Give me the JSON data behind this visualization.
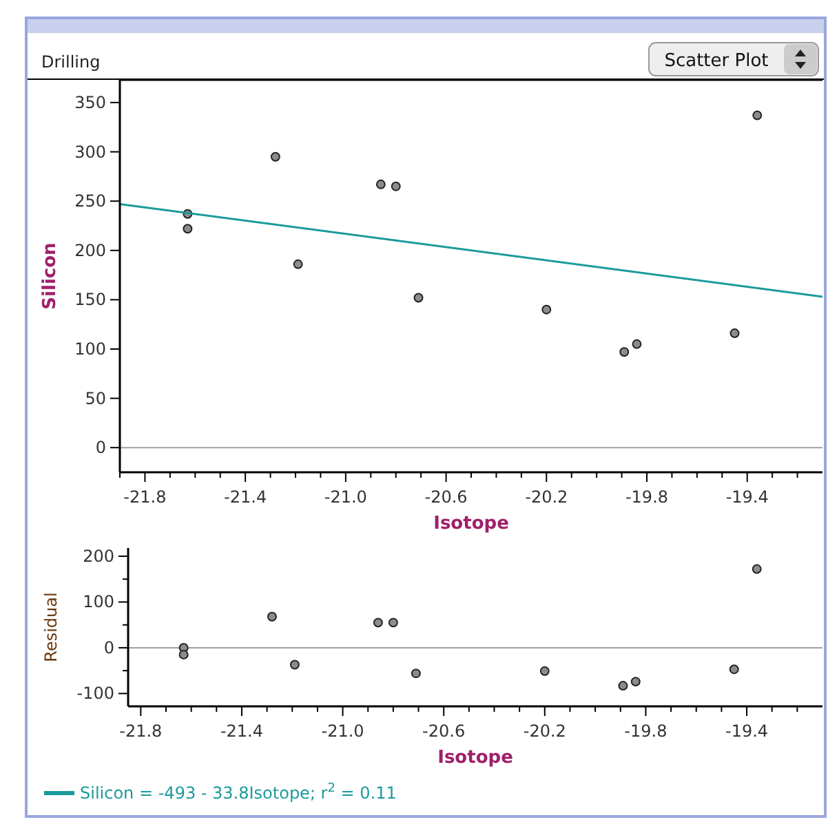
{
  "chart_data": [
    {
      "type": "scatter",
      "title": "Drilling",
      "annotations": [
        "Scatter Plot"
      ],
      "xlabel": "Isotope",
      "ylabel": "Silicon",
      "xlim": [
        -21.9,
        -19.1
      ],
      "ylim": [
        -25,
        373
      ],
      "xticks": [
        {
          "value": -21.9,
          "label": null
        },
        -21.8,
        {
          "value": -21.7,
          "label": null
        },
        {
          "value": -21.6,
          "label": null
        },
        {
          "value": -21.5,
          "label": null
        },
        -21.4,
        {
          "value": -21.3,
          "label": null
        },
        {
          "value": -21.2,
          "label": null
        },
        {
          "value": -21.1,
          "label": null
        },
        {
          "value": -21.0,
          "label": "-21.0"
        },
        {
          "value": -20.9,
          "label": null
        },
        {
          "value": -20.8,
          "label": null
        },
        {
          "value": -20.7,
          "label": null
        },
        -20.6,
        {
          "value": -20.5,
          "label": null
        },
        {
          "value": -20.4,
          "label": null
        },
        {
          "value": -20.3,
          "label": null
        },
        -20.2,
        {
          "value": -20.1,
          "label": null
        },
        {
          "value": -20.0,
          "label": null
        },
        {
          "value": -19.9,
          "label": null
        },
        -19.8,
        {
          "value": -19.7,
          "label": null
        },
        {
          "value": -19.6,
          "label": null
        },
        {
          "value": -19.5,
          "label": null
        },
        -19.4,
        {
          "value": -19.3,
          "label": null
        },
        {
          "value": -19.2,
          "label": null
        }
      ],
      "yticks": [
        0,
        50,
        100,
        150,
        200,
        250,
        300,
        350
      ],
      "grid": false,
      "marker": "circle",
      "legend": "bottom",
      "ref_lines": [
        {
          "axis": "y",
          "value": 0,
          "color": "#a0a0a0"
        }
      ],
      "series": [
        {
          "color": "#8c8c8c",
          "x": [
            -21.63,
            -21.63,
            -21.28,
            -21.19,
            -20.86,
            -20.8,
            -20.71,
            -20.2,
            -19.89,
            -19.84,
            -19.45,
            -19.36
          ],
          "values": [
            237,
            222,
            295,
            186,
            267,
            265,
            152,
            140,
            97,
            105,
            116,
            337
          ]
        },
        {
          "type": "line",
          "marker": "none",
          "name": "Silicon = -493 - 33.8Isotope; r$^{2}$ = 0.11",
          "color": "#1a9a9a",
          "x": [
            -21.9,
            -19.1
          ],
          "values": [
            247,
            153
          ]
        }
      ]
    },
    {
      "type": "scatter",
      "xlabel": "Isotope",
      "ylabel": "Residual",
      "xlim": [
        -21.85,
        -19.1
      ],
      "ylim": [
        -128,
        218
      ],
      "xticks": [
        -21.8,
        {
          "value": -21.7,
          "label": null
        },
        {
          "value": -21.6,
          "label": null
        },
        {
          "value": -21.5,
          "label": null
        },
        -21.4,
        {
          "value": -21.3,
          "label": null
        },
        {
          "value": -21.2,
          "label": null
        },
        {
          "value": -21.1,
          "label": null
        },
        {
          "value": -21.0,
          "label": "-21.0"
        },
        {
          "value": -20.9,
          "label": null
        },
        {
          "value": -20.8,
          "label": null
        },
        {
          "value": -20.7,
          "label": null
        },
        -20.6,
        {
          "value": -20.5,
          "label": null
        },
        {
          "value": -20.4,
          "label": null
        },
        {
          "value": -20.3,
          "label": null
        },
        -20.2,
        {
          "value": -20.1,
          "label": null
        },
        {
          "value": -20.0,
          "label": null
        },
        {
          "value": -19.9,
          "label": null
        },
        -19.8,
        {
          "value": -19.7,
          "label": null
        },
        {
          "value": -19.6,
          "label": null
        },
        {
          "value": -19.5,
          "label": null
        },
        -19.4,
        {
          "value": -19.3,
          "label": null
        },
        {
          "value": -19.2,
          "label": null
        }
      ],
      "yticks": [
        -100,
        {
          "value": -50,
          "label": null
        },
        0,
        {
          "value": 50,
          "label": null
        },
        100,
        {
          "value": 150,
          "label": null
        },
        200
      ],
      "grid": false,
      "marker": "circle",
      "ref_lines": [
        {
          "axis": "y",
          "value": 0,
          "color": "#a0a0a0"
        }
      ],
      "series": [
        {
          "color": "#8c8c8c",
          "x": [
            -21.63,
            -21.63,
            -21.28,
            -21.19,
            -20.86,
            -20.8,
            -20.71,
            -20.2,
            -19.89,
            -19.84,
            -19.45,
            -19.36
          ],
          "values": [
            0,
            -15,
            68,
            -37,
            55,
            55,
            -56,
            -51,
            -83,
            -74,
            -47,
            172
          ]
        }
      ]
    }
  ]
}
